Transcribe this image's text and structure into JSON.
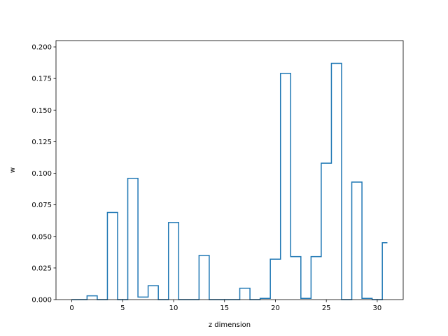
{
  "chart_data": {
    "type": "step",
    "title": "",
    "xlabel": "z dimension",
    "ylabel": "w",
    "xlim": [
      -1.55,
      32.55
    ],
    "ylim": [
      0,
      0.205
    ],
    "grid": false,
    "line_color": "#1f77b4",
    "x": [
      0,
      1,
      2,
      3,
      4,
      5,
      6,
      7,
      8,
      9,
      10,
      11,
      12,
      13,
      14,
      15,
      16,
      17,
      18,
      19,
      20,
      21,
      22,
      23,
      24,
      25,
      26,
      27,
      28,
      29,
      30,
      31
    ],
    "y": [
      0.0,
      0.0,
      0.003,
      0.0,
      0.069,
      0.0,
      0.096,
      0.002,
      0.011,
      0.0,
      0.061,
      0.0,
      0.0,
      0.035,
      0.0,
      0.0,
      0.0,
      0.009,
      0.0,
      0.001,
      0.032,
      0.179,
      0.034,
      0.001,
      0.034,
      0.108,
      0.187,
      0.0,
      0.093,
      0.001,
      0.0,
      0.045
    ],
    "x_ticks": [
      {
        "value": 0,
        "label": "0"
      },
      {
        "value": 5,
        "label": "5"
      },
      {
        "value": 10,
        "label": "10"
      },
      {
        "value": 15,
        "label": "15"
      },
      {
        "value": 20,
        "label": "20"
      },
      {
        "value": 25,
        "label": "25"
      },
      {
        "value": 30,
        "label": "30"
      }
    ],
    "y_ticks": [
      {
        "value": 0.0,
        "label": "0.000"
      },
      {
        "value": 0.025,
        "label": "0.025"
      },
      {
        "value": 0.05,
        "label": "0.050"
      },
      {
        "value": 0.075,
        "label": "0.075"
      },
      {
        "value": 0.1,
        "label": "0.100"
      },
      {
        "value": 0.125,
        "label": "0.125"
      },
      {
        "value": 0.15,
        "label": "0.150"
      },
      {
        "value": 0.175,
        "label": "0.175"
      },
      {
        "value": 0.2,
        "label": "0.200"
      }
    ]
  }
}
